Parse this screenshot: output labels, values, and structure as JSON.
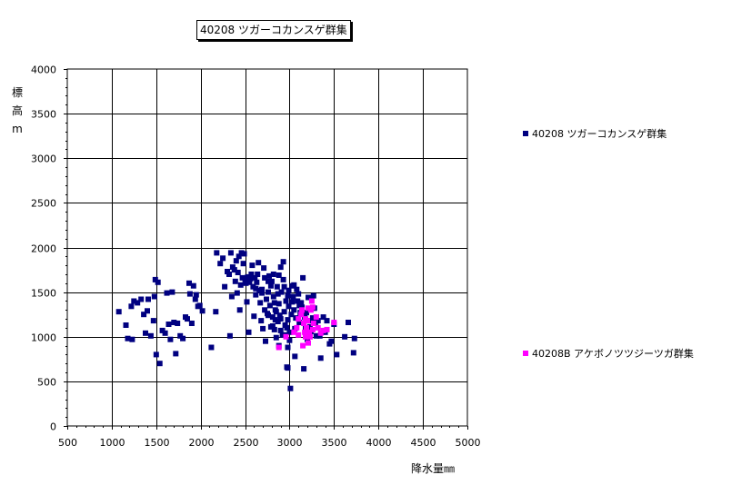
{
  "title": "40208 ツガーコカンスゲ群集",
  "colors": {
    "background": "#ffffff",
    "axis": "#000000",
    "grid": "#000000",
    "series1": "#000080",
    "series2": "#ff00ff"
  },
  "chart_data": {
    "type": "scatter",
    "title": "40208 ツガーコカンスゲ群集",
    "xlabel": "降水量㎜",
    "ylabel_chars": [
      "標",
      "高",
      "m"
    ],
    "xlim": [
      500,
      5000
    ],
    "ylim": [
      0,
      4000
    ],
    "xticks": [
      500,
      1000,
      1500,
      2000,
      2500,
      3000,
      3500,
      4000,
      4500,
      5000
    ],
    "yticks": [
      0,
      500,
      1000,
      1500,
      2000,
      2500,
      3000,
      3500,
      4000
    ],
    "grid": true,
    "legend_position": "right",
    "series": [
      {
        "name": "40208 ツガーコカンスゲ群集",
        "marker": "square",
        "color": "#000080",
        "points": [
          [
            1080,
            1280
          ],
          [
            1160,
            1130
          ],
          [
            1180,
            980
          ],
          [
            1220,
            1340
          ],
          [
            1230,
            970
          ],
          [
            1250,
            1400
          ],
          [
            1290,
            1380
          ],
          [
            1330,
            1420
          ],
          [
            1360,
            1250
          ],
          [
            1380,
            1040
          ],
          [
            1400,
            1290
          ],
          [
            1410,
            1420
          ],
          [
            1440,
            1010
          ],
          [
            1470,
            1180
          ],
          [
            1480,
            1450
          ],
          [
            1490,
            1640
          ],
          [
            1500,
            800
          ],
          [
            1520,
            1610
          ],
          [
            1540,
            700
          ],
          [
            1570,
            1070
          ],
          [
            1600,
            1040
          ],
          [
            1620,
            1490
          ],
          [
            1640,
            1140
          ],
          [
            1660,
            970
          ],
          [
            1680,
            1500
          ],
          [
            1700,
            1160
          ],
          [
            1720,
            810
          ],
          [
            1740,
            1150
          ],
          [
            1770,
            1010
          ],
          [
            1800,
            980
          ],
          [
            1830,
            1220
          ],
          [
            1850,
            1200
          ],
          [
            1870,
            1600
          ],
          [
            1880,
            1480
          ],
          [
            1900,
            1150
          ],
          [
            1920,
            1570
          ],
          [
            1940,
            1420
          ],
          [
            1950,
            1470
          ],
          [
            1970,
            1340
          ],
          [
            1990,
            1350
          ],
          [
            2020,
            1290
          ],
          [
            2120,
            880
          ],
          [
            2170,
            1280
          ],
          [
            2180,
            1940
          ],
          [
            2220,
            1820
          ],
          [
            2250,
            1880
          ],
          [
            2270,
            1560
          ],
          [
            2300,
            1730
          ],
          [
            2320,
            1700
          ],
          [
            2330,
            1010
          ],
          [
            2340,
            1940
          ],
          [
            2350,
            1450
          ],
          [
            2360,
            1780
          ],
          [
            2380,
            1750
          ],
          [
            2390,
            1620
          ],
          [
            2400,
            1850
          ],
          [
            2410,
            1490
          ],
          [
            2420,
            1720
          ],
          [
            2430,
            1900
          ],
          [
            2440,
            1300
          ],
          [
            2450,
            1580
          ],
          [
            2460,
            1940
          ],
          [
            2470,
            1660
          ],
          [
            2480,
            1820
          ],
          [
            2490,
            1930
          ],
          [
            2500,
            1640
          ],
          [
            2510,
            1600
          ],
          [
            2520,
            1390
          ],
          [
            2530,
            1670
          ],
          [
            2540,
            1050
          ],
          [
            2550,
            1610
          ],
          [
            2560,
            1650
          ],
          [
            2570,
            1700
          ],
          [
            2580,
            1800
          ],
          [
            2590,
            1560
          ],
          [
            2600,
            1230
          ],
          [
            2610,
            1660
          ],
          [
            2620,
            1470
          ],
          [
            2630,
            1610
          ],
          [
            2640,
            1700
          ],
          [
            2650,
            1830
          ],
          [
            2660,
            1520
          ],
          [
            2670,
            1380
          ],
          [
            2680,
            1180
          ],
          [
            2690,
            1530
          ],
          [
            2700,
            1090
          ],
          [
            2710,
            1770
          ],
          [
            2720,
            1660
          ],
          [
            2730,
            950
          ],
          [
            2740,
            1420
          ],
          [
            2750,
            1260
          ],
          [
            2760,
            1500
          ],
          [
            2770,
            1680
          ],
          [
            2780,
            1350
          ],
          [
            2790,
            1110
          ],
          [
            2800,
            1620
          ],
          [
            2810,
            1220
          ],
          [
            2820,
            1450
          ],
          [
            2830,
            1080
          ],
          [
            2840,
            1300
          ],
          [
            2850,
            990
          ],
          [
            2860,
            1560
          ],
          [
            2870,
            1170
          ],
          [
            2880,
            1370
          ],
          [
            2890,
            1240
          ],
          [
            2900,
            1780
          ],
          [
            2910,
            1500
          ],
          [
            2920,
            1020
          ],
          [
            2930,
            1840
          ],
          [
            2940,
            1280
          ],
          [
            2950,
            1130
          ],
          [
            2960,
            1400
          ],
          [
            2970,
            660
          ],
          [
            2980,
            1190
          ],
          [
            2990,
            1340
          ],
          [
            3000,
            1050
          ],
          [
            3010,
            420
          ],
          [
            3020,
            1250
          ],
          [
            3030,
            1570
          ],
          [
            3040,
            1450
          ],
          [
            3050,
            1300
          ],
          [
            3060,
            780
          ],
          [
            3070,
            1210
          ],
          [
            3080,
            1530
          ],
          [
            3090,
            1400
          ],
          [
            3100,
            1480
          ],
          [
            3110,
            1160
          ],
          [
            3120,
            1270
          ],
          [
            3130,
            1380
          ],
          [
            3140,
            1330
          ],
          [
            3150,
            1660
          ],
          [
            3160,
            640
          ],
          [
            3170,
            1220
          ],
          [
            3180,
            1090
          ],
          [
            3190,
            1270
          ],
          [
            3200,
            970
          ],
          [
            3210,
            1440
          ],
          [
            3220,
            1180
          ],
          [
            3230,
            1110
          ],
          [
            3240,
            1060
          ],
          [
            3260,
            1210
          ],
          [
            3270,
            1460
          ],
          [
            3280,
            1320
          ],
          [
            3290,
            1150
          ],
          [
            3300,
            1010
          ],
          [
            3320,
            1180
          ],
          [
            3340,
            1010
          ],
          [
            3350,
            760
          ],
          [
            3380,
            1220
          ],
          [
            3400,
            1050
          ],
          [
            3420,
            1180
          ],
          [
            3450,
            920
          ],
          [
            3470,
            950
          ],
          [
            3500,
            1140
          ],
          [
            3530,
            800
          ],
          [
            3620,
            1000
          ],
          [
            3660,
            1160
          ],
          [
            3720,
            820
          ],
          [
            3730,
            980
          ],
          [
            2790,
            1570
          ],
          [
            2820,
            1700
          ],
          [
            2760,
            1620
          ],
          [
            2870,
            1480
          ],
          [
            2940,
            1560
          ],
          [
            2990,
            1520
          ],
          [
            3050,
            1580
          ],
          [
            2690,
            1490
          ],
          [
            2620,
            1540
          ],
          [
            2880,
            1690
          ],
          [
            2930,
            1640
          ],
          [
            2980,
            1460
          ],
          [
            3030,
            1390
          ],
          [
            3110,
            1350
          ],
          [
            3170,
            1250
          ],
          [
            2900,
            1200
          ],
          [
            2830,
            1380
          ],
          [
            2760,
            1240
          ],
          [
            2720,
            1300
          ],
          [
            2810,
            1120
          ],
          [
            2850,
            1280
          ],
          [
            2950,
            1020
          ],
          [
            3000,
            960
          ],
          [
            2900,
            1070
          ],
          [
            2880,
            900
          ],
          [
            2980,
            880
          ],
          [
            3060,
            1090
          ],
          [
            2980,
            650
          ],
          [
            2840,
            1190
          ],
          [
            2970,
            1100
          ]
        ]
      },
      {
        "name": "40208B アケボノツツジーツガ群集",
        "marker": "square",
        "color": "#ff00ff",
        "points": [
          [
            2880,
            880
          ],
          [
            2960,
            1000
          ],
          [
            3050,
            1050
          ],
          [
            3080,
            1100
          ],
          [
            3100,
            1200
          ],
          [
            3130,
            1250
          ],
          [
            3150,
            900
          ],
          [
            3160,
            1150
          ],
          [
            3170,
            1050
          ],
          [
            3180,
            1200
          ],
          [
            3190,
            1100
          ],
          [
            3200,
            1180
          ],
          [
            3210,
            1320
          ],
          [
            3220,
            1050
          ],
          [
            3230,
            1000
          ],
          [
            3240,
            1300
          ],
          [
            3250,
            1400
          ],
          [
            3260,
            1080
          ],
          [
            3270,
            1150
          ],
          [
            3300,
            1220
          ],
          [
            3320,
            1100
          ],
          [
            3350,
            1040
          ],
          [
            3380,
            1070
          ],
          [
            3420,
            1080
          ],
          [
            3500,
            1160
          ],
          [
            3180,
            1000
          ],
          [
            3210,
            930
          ],
          [
            3260,
            1330
          ],
          [
            3100,
            1020
          ],
          [
            3140,
            1300
          ]
        ]
      }
    ]
  }
}
